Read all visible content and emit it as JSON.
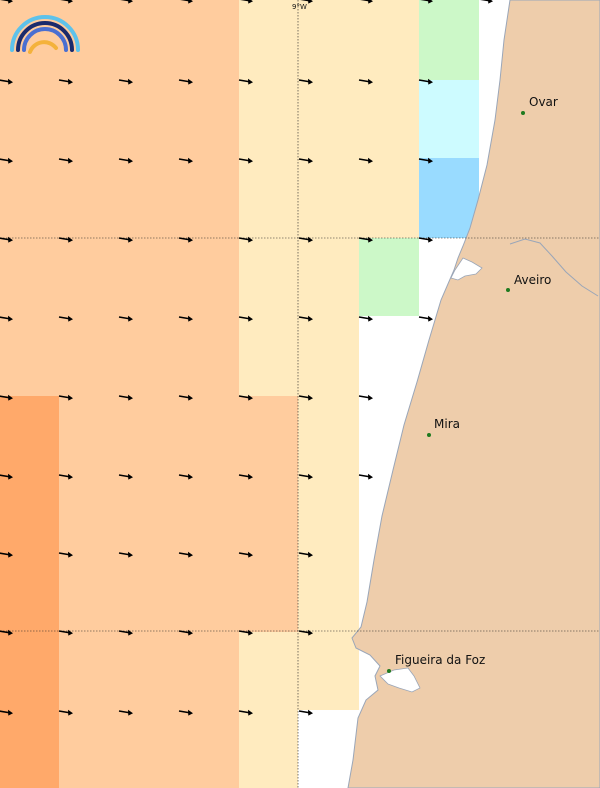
{
  "map": {
    "meridian_label": "9°W",
    "logo_icon": "wave-rainbow-logo-icon",
    "colors": {
      "sea_white": "#ffffff",
      "land": "#eecdab",
      "coast_stroke": "#9aa6b8",
      "orange_dark": "#ffa96a",
      "orange_light": "#ffcc9e",
      "cream": "#ffebbf",
      "light_green": "#ccf8c8",
      "light_cyan": "#cdfbff",
      "light_blue": "#99dbff",
      "arrow": "#000000",
      "city_dot": "#1f7a1f"
    },
    "cities": [
      {
        "name": "Ovar"
      },
      {
        "name": "Aveiro"
      },
      {
        "name": "Mira"
      },
      {
        "name": "Figueira da Foz"
      }
    ],
    "legend_note": ""
  }
}
